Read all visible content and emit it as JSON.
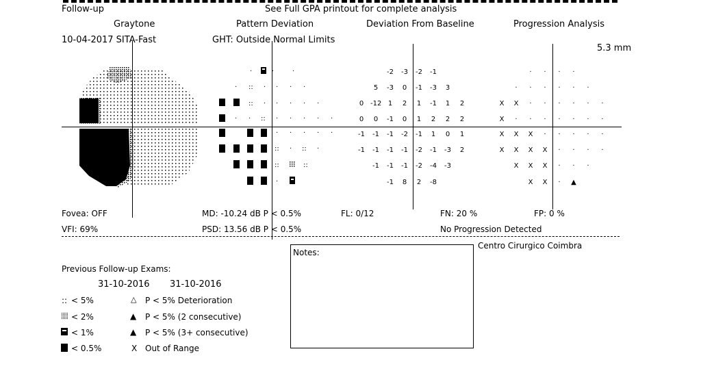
{
  "header": {
    "followup": "Follow-up",
    "see_full": "See Full GPA printout for complete analysis"
  },
  "panels": {
    "graytone": "Graytone",
    "pattern_deviation": "Pattern Deviation",
    "deviation_from_baseline": "Deviation From Baseline",
    "progression_analysis": "Progression Analysis"
  },
  "exam": {
    "date_strategy": "10-04-2017  SITA-Fast",
    "ght": "GHT: Outside Normal Limits",
    "pupil": "5.3 mm"
  },
  "baseline_grid": {
    "rows": [
      [
        "-2",
        "-3",
        "-2",
        "-1"
      ],
      [
        "5",
        "-3",
        "0",
        "-1",
        "-3",
        "3"
      ],
      [
        "0",
        "-12",
        "1",
        "2",
        "1",
        "-1",
        "1",
        "2"
      ],
      [
        "0",
        "0",
        "-1",
        "0",
        "1",
        "2",
        "2",
        "2"
      ],
      [
        "-1",
        "-1",
        "-1",
        "-2",
        "-1",
        "1",
        "0",
        "1"
      ],
      [
        "-1",
        "-1",
        "-1",
        "-1",
        "-2",
        "-1",
        "-3",
        "2"
      ],
      [
        "-1",
        "-1",
        "-1",
        "-2",
        "-4",
        "-3"
      ],
      [
        "-1",
        "8",
        "2",
        "-8"
      ]
    ]
  },
  "progression_grid": {
    "rows": [
      [
        "·",
        "·",
        "·",
        "·"
      ],
      [
        "·",
        "·",
        "·",
        "·",
        "·",
        "·"
      ],
      [
        "X",
        "X",
        "·",
        "·",
        "·",
        "·",
        "·",
        "·"
      ],
      [
        "X",
        "·",
        "·",
        "·",
        "·",
        "·",
        "·",
        "·"
      ],
      [
        "X",
        "X",
        "X",
        "·",
        "·",
        "·",
        "·",
        "·"
      ],
      [
        "X",
        "X",
        "X",
        "X",
        "·",
        "·",
        "·",
        "·"
      ],
      [
        "X",
        "X",
        "X",
        "·",
        "·",
        "·"
      ],
      [
        "X",
        "X",
        "·",
        "▲"
      ]
    ]
  },
  "stats": {
    "fovea": "Fovea: OFF",
    "vfi": "VFI:  69%",
    "md": "MD: -10.24 dB  P < 0.5%",
    "psd": "PSD:  13.56 dB  P < 0.5%",
    "fl": "FL: 0/12",
    "fn": "FN:  20 %",
    "fp": "FP:  0 %",
    "progression": "No Progression Detected"
  },
  "clinic": "Centro Cirurgico Coimbra",
  "notes_label": "Notes:",
  "previous": {
    "title": "Previous Follow-up Exams:",
    "date1": "31-10-2016",
    "date2": "31-10-2016"
  },
  "legend": {
    "p5": "< 5%",
    "p2": "< 2%",
    "p1": "< 1%",
    "p05": "< 0.5%",
    "det": "P < 5% Deterioration",
    "two": "P < 5% (2 consecutive)",
    "three": "P < 5% (3+ consecutive)",
    "oor": "Out of Range"
  }
}
